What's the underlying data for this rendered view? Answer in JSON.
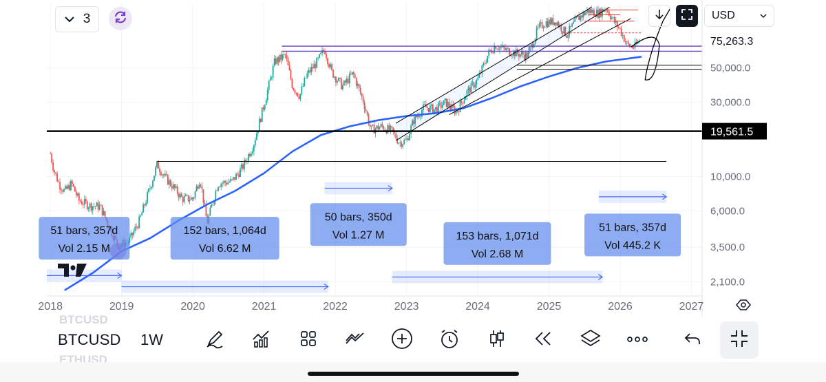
{
  "toolbar_top": {
    "layout_count": "3",
    "currency": "USD"
  },
  "chart_data": {
    "type": "candlestick",
    "symbol": "BTCUSD",
    "interval": "1W",
    "yscale": "log",
    "ylim": [
      1700,
      130000
    ],
    "xlim": [
      2017.95,
      2027.15
    ],
    "y_ticks": [
      {
        "value": 50000,
        "label": "50,000.0"
      },
      {
        "value": 30000,
        "label": "30,000.0"
      },
      {
        "value": 10000,
        "label": "10,000.0"
      },
      {
        "value": 6000,
        "label": "6,000.0"
      },
      {
        "value": 3500,
        "label": "3,500.0"
      },
      {
        "value": 2100,
        "label": "2,100.0"
      }
    ],
    "x_ticks": [
      {
        "value": 2018,
        "label": "2018"
      },
      {
        "value": 2019,
        "label": "2019"
      },
      {
        "value": 2020,
        "label": "2020"
      },
      {
        "value": 2021,
        "label": "2021"
      },
      {
        "value": 2022,
        "label": "2022"
      },
      {
        "value": 2023,
        "label": "2023"
      },
      {
        "value": 2024,
        "label": "2024"
      },
      {
        "value": 2025,
        "label": "2025"
      },
      {
        "value": 2026,
        "label": "2026"
      },
      {
        "value": 2027,
        "label": "2027"
      }
    ],
    "last_price": {
      "value": 75263.3,
      "label": "75,263.3"
    },
    "marked_price": {
      "value": 19561.5,
      "label": "19,561.5"
    },
    "price_series": [
      {
        "t": 2018.0,
        "p": 14000
      },
      {
        "t": 2018.05,
        "p": 11000
      },
      {
        "t": 2018.12,
        "p": 9000
      },
      {
        "t": 2018.2,
        "p": 8000
      },
      {
        "t": 2018.3,
        "p": 9000
      },
      {
        "t": 2018.4,
        "p": 7000
      },
      {
        "t": 2018.55,
        "p": 6500
      },
      {
        "t": 2018.7,
        "p": 6400
      },
      {
        "t": 2018.85,
        "p": 4500
      },
      {
        "t": 2018.95,
        "p": 3600
      },
      {
        "t": 2019.1,
        "p": 3800
      },
      {
        "t": 2019.25,
        "p": 5200
      },
      {
        "t": 2019.4,
        "p": 8500
      },
      {
        "t": 2019.5,
        "p": 12000
      },
      {
        "t": 2019.6,
        "p": 10000
      },
      {
        "t": 2019.75,
        "p": 8300
      },
      {
        "t": 2019.85,
        "p": 7200
      },
      {
        "t": 2020.0,
        "p": 7200
      },
      {
        "t": 2020.1,
        "p": 9800
      },
      {
        "t": 2020.2,
        "p": 5000
      },
      {
        "t": 2020.35,
        "p": 9000
      },
      {
        "t": 2020.55,
        "p": 9300
      },
      {
        "t": 2020.7,
        "p": 11500
      },
      {
        "t": 2020.85,
        "p": 16000
      },
      {
        "t": 2021.0,
        "p": 29000
      },
      {
        "t": 2021.15,
        "p": 55000
      },
      {
        "t": 2021.3,
        "p": 60000
      },
      {
        "t": 2021.4,
        "p": 38000
      },
      {
        "t": 2021.5,
        "p": 33000
      },
      {
        "t": 2021.6,
        "p": 45000
      },
      {
        "t": 2021.75,
        "p": 55000
      },
      {
        "t": 2021.85,
        "p": 66000
      },
      {
        "t": 2021.95,
        "p": 47000
      },
      {
        "t": 2022.1,
        "p": 38000
      },
      {
        "t": 2022.25,
        "p": 46000
      },
      {
        "t": 2022.4,
        "p": 30000
      },
      {
        "t": 2022.5,
        "p": 20000
      },
      {
        "t": 2022.65,
        "p": 21000
      },
      {
        "t": 2022.8,
        "p": 19500
      },
      {
        "t": 2022.9,
        "p": 16500
      },
      {
        "t": 2023.0,
        "p": 17000
      },
      {
        "t": 2023.1,
        "p": 23000
      },
      {
        "t": 2023.25,
        "p": 28000
      },
      {
        "t": 2023.4,
        "p": 27000
      },
      {
        "t": 2023.55,
        "p": 30000
      },
      {
        "t": 2023.7,
        "p": 26000
      },
      {
        "t": 2023.85,
        "p": 35000
      },
      {
        "t": 2024.0,
        "p": 42000
      },
      {
        "t": 2024.15,
        "p": 62000
      },
      {
        "t": 2024.25,
        "p": 70000
      },
      {
        "t": 2024.4,
        "p": 65000
      },
      {
        "t": 2024.55,
        "p": 62000
      },
      {
        "t": 2024.7,
        "p": 60000
      },
      {
        "t": 2024.85,
        "p": 90000
      },
      {
        "t": 2024.95,
        "p": 98000
      },
      {
        "t": 2025.1,
        "p": 100000
      },
      {
        "t": 2025.25,
        "p": 82000
      },
      {
        "t": 2025.4,
        "p": 104000
      },
      {
        "t": 2025.55,
        "p": 117000
      },
      {
        "t": 2025.7,
        "p": 112000
      },
      {
        "t": 2025.8,
        "p": 122000
      },
      {
        "t": 2025.9,
        "p": 102000
      },
      {
        "t": 2026.0,
        "p": 88000
      },
      {
        "t": 2026.1,
        "p": 70000
      },
      {
        "t": 2026.2,
        "p": 68000
      },
      {
        "t": 2026.27,
        "p": 75263
      }
    ],
    "moving_average": [
      {
        "t": 2018.2,
        "p": 1850
      },
      {
        "t": 2018.6,
        "p": 2400
      },
      {
        "t": 2019.0,
        "p": 3300
      },
      {
        "t": 2019.4,
        "p": 4000
      },
      {
        "t": 2019.8,
        "p": 5200
      },
      {
        "t": 2020.2,
        "p": 6600
      },
      {
        "t": 2020.6,
        "p": 8100
      },
      {
        "t": 2021.0,
        "p": 10500
      },
      {
        "t": 2021.4,
        "p": 14500
      },
      {
        "t": 2021.8,
        "p": 18500
      },
      {
        "t": 2022.2,
        "p": 21000
      },
      {
        "t": 2022.6,
        "p": 23000
      },
      {
        "t": 2023.0,
        "p": 24500
      },
      {
        "t": 2023.4,
        "p": 25500
      },
      {
        "t": 2023.8,
        "p": 27500
      },
      {
        "t": 2024.2,
        "p": 32000
      },
      {
        "t": 2024.6,
        "p": 38000
      },
      {
        "t": 2025.0,
        "p": 44000
      },
      {
        "t": 2025.4,
        "p": 50000
      },
      {
        "t": 2025.8,
        "p": 55000
      },
      {
        "t": 2026.3,
        "p": 59000
      }
    ],
    "horizontal_levels": [
      {
        "price": 19561.5,
        "t1": 2017.95,
        "t2": 2027.15,
        "color": "#000000",
        "width": 2.5
      },
      {
        "price": 12500,
        "t1": 2019.5,
        "t2": 2026.65,
        "color": "#000000",
        "width": 1
      },
      {
        "price": 69000,
        "t1": 2021.25,
        "t2": 2027.15,
        "color": "#6a3fb5",
        "width": 1.4
      },
      {
        "price": 64000,
        "t1": 2021.25,
        "t2": 2027.15,
        "color": "#6a3fb5",
        "width": 1.4
      },
      {
        "price": 52000,
        "t1": 2024.55,
        "t2": 2027.15,
        "color": "#000000",
        "width": 1
      },
      {
        "price": 49000,
        "t1": 2024.55,
        "t2": 2027.15,
        "color": "#000000",
        "width": 1
      }
    ],
    "channel": [
      {
        "t1": 2022.85,
        "p1": 17000,
        "t2": 2025.85,
        "p2": 123000
      },
      {
        "t1": 2022.85,
        "p1": 22000,
        "t2": 2025.6,
        "p2": 123000
      },
      {
        "t1": 2023.6,
        "p1": 25000,
        "t2": 2026.15,
        "p2": 104000
      }
    ],
    "measurements": [
      {
        "bars": "51 bars, 357d",
        "vol": "Vol 2.15 M",
        "t1": 2017.95,
        "t2": 2019.0,
        "p_label": 4000,
        "p_range": 2300
      },
      {
        "bars": "152 bars, 1,064d",
        "vol": "Vol 6.62 M",
        "t1": 2019.0,
        "t2": 2021.9,
        "p_label": 4000,
        "p_range": 1950
      },
      {
        "bars": "50 bars, 350d",
        "vol": "Vol 1.27 M",
        "t1": 2021.85,
        "t2": 2022.8,
        "p_label": 4900,
        "p_range": 8400
      },
      {
        "bars": "153 bars, 1,071d",
        "vol": "Vol 2.68 M",
        "t1": 2022.8,
        "t2": 2025.75,
        "p_label": 3700,
        "p_range": 2250
      },
      {
        "bars": "51 bars, 357d",
        "vol": "Vol 445.2 K",
        "t1": 2025.7,
        "t2": 2026.65,
        "p_label": 4200,
        "p_range": 7400
      }
    ]
  },
  "bottom_bar": {
    "symbol": "BTCUSD",
    "interval": "1W",
    "symbol_above": "BTCUSD",
    "symbol_below": "ETHUSD"
  }
}
